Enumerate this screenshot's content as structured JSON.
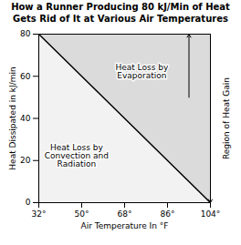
{
  "chart_data": {
    "type": "line",
    "title": "How a Runner Producing 80 kJ/Min of Heat\nGets Rid of It at Various Air Temperatures",
    "xlabel": "Air Temperature In °F",
    "ylabel": "Heat Dissipated in kJ/min",
    "x": [
      32,
      104
    ],
    "values": [
      80,
      0
    ],
    "color": "#000000",
    "xlim": [
      32,
      104
    ],
    "ylim": [
      0,
      80
    ],
    "xticks": [
      {
        "value": 32,
        "label": "32°"
      },
      {
        "value": 50,
        "label": "50°"
      },
      {
        "value": 68,
        "label": "68°"
      },
      {
        "value": 86,
        "label": "86°"
      },
      {
        "value": 104,
        "label": "104°"
      }
    ],
    "yticks": [
      0,
      20,
      40,
      60,
      80
    ],
    "grid": false,
    "annotations": [
      "Heat Loss by\nEvaporation",
      "Heat Loss by\nConvection and\nRadiation",
      "Region of Heat Gain"
    ],
    "arrows": [
      {
        "x": 95,
        "from": 50,
        "to": 80
      },
      {
        "x": 104,
        "from": 12,
        "to": 0
      }
    ]
  }
}
